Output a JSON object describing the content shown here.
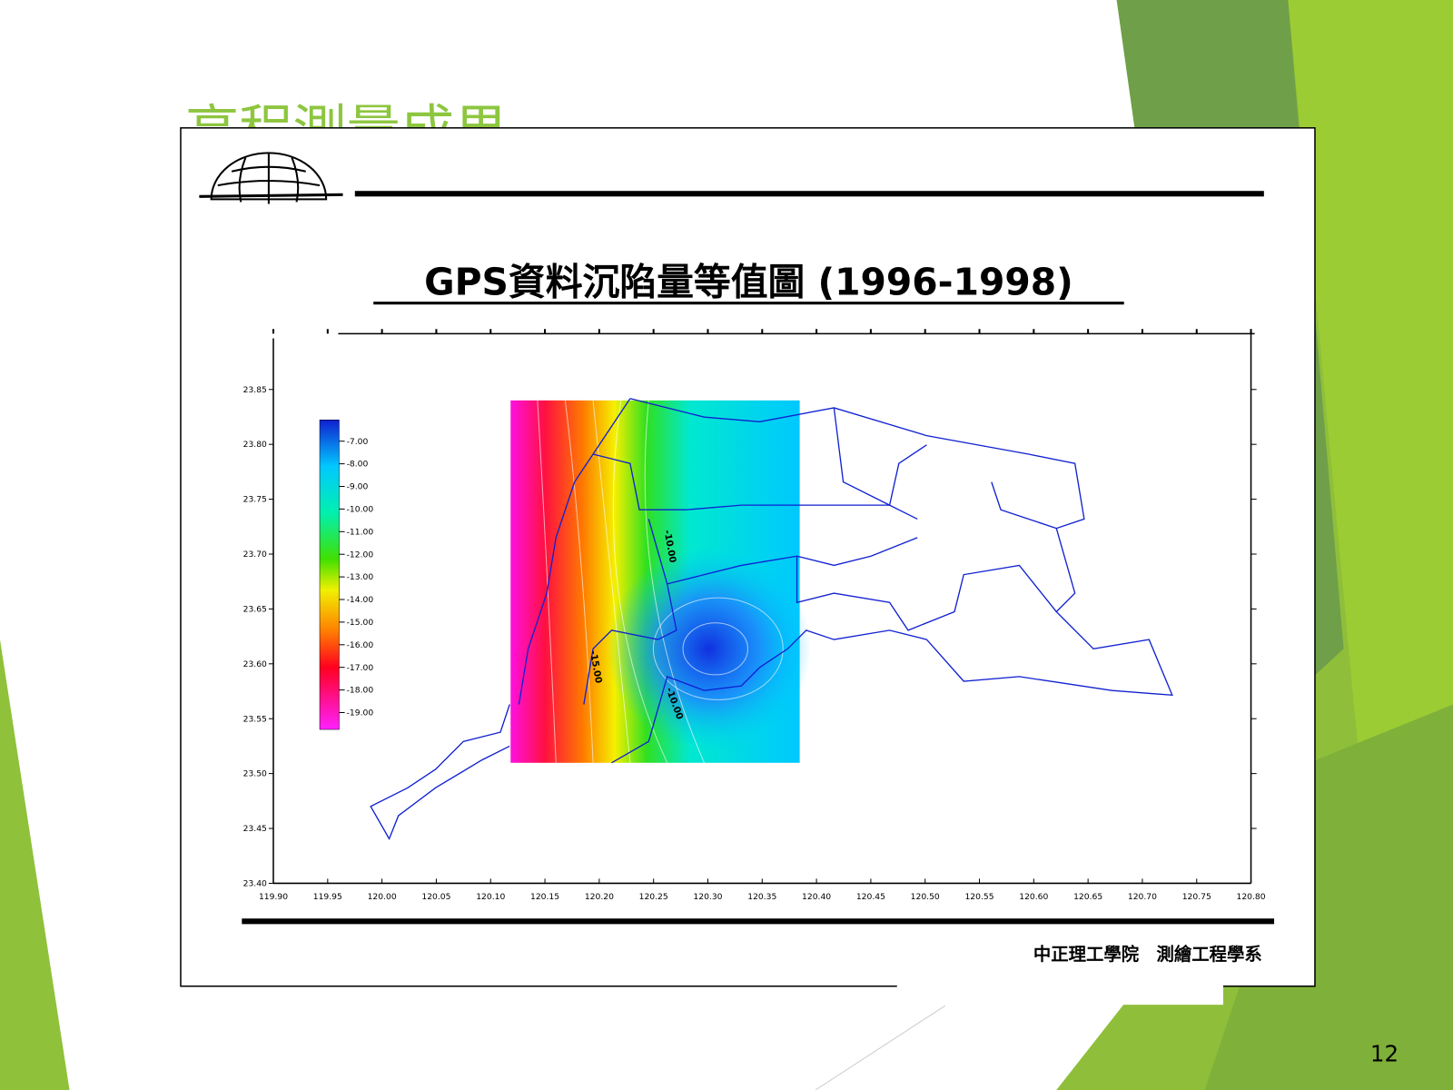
{
  "slide": {
    "title": "高程測量成果",
    "page_number": "12"
  },
  "figure": {
    "title": "GPS資料沉陷量等值圖 (1996-1998)",
    "footer": "中正理工學院　測繪工程學系",
    "xticks": [
      "119.90",
      "119.95",
      "120.00",
      "120.05",
      "120.10",
      "120.15",
      "120.20",
      "120.25",
      "120.30",
      "120.35",
      "120.40",
      "120.45",
      "120.50",
      "120.55",
      "120.60",
      "120.65",
      "120.70",
      "120.75",
      "120.80"
    ],
    "yticks": [
      "23.40",
      "23.45",
      "23.50",
      "23.55",
      "23.60",
      "23.65",
      "23.70",
      "23.75",
      "23.80",
      "23.85"
    ],
    "colorbar": [
      "-7.00",
      "-8.00",
      "-9.00",
      "-10.00",
      "-11.00",
      "-12.00",
      "-13.00",
      "-14.00",
      "-15.00",
      "-16.00",
      "-17.00",
      "-18.00",
      "-19.00"
    ],
    "contour_labels": [
      "-10.00",
      "-15.00",
      "-10.00"
    ]
  }
}
